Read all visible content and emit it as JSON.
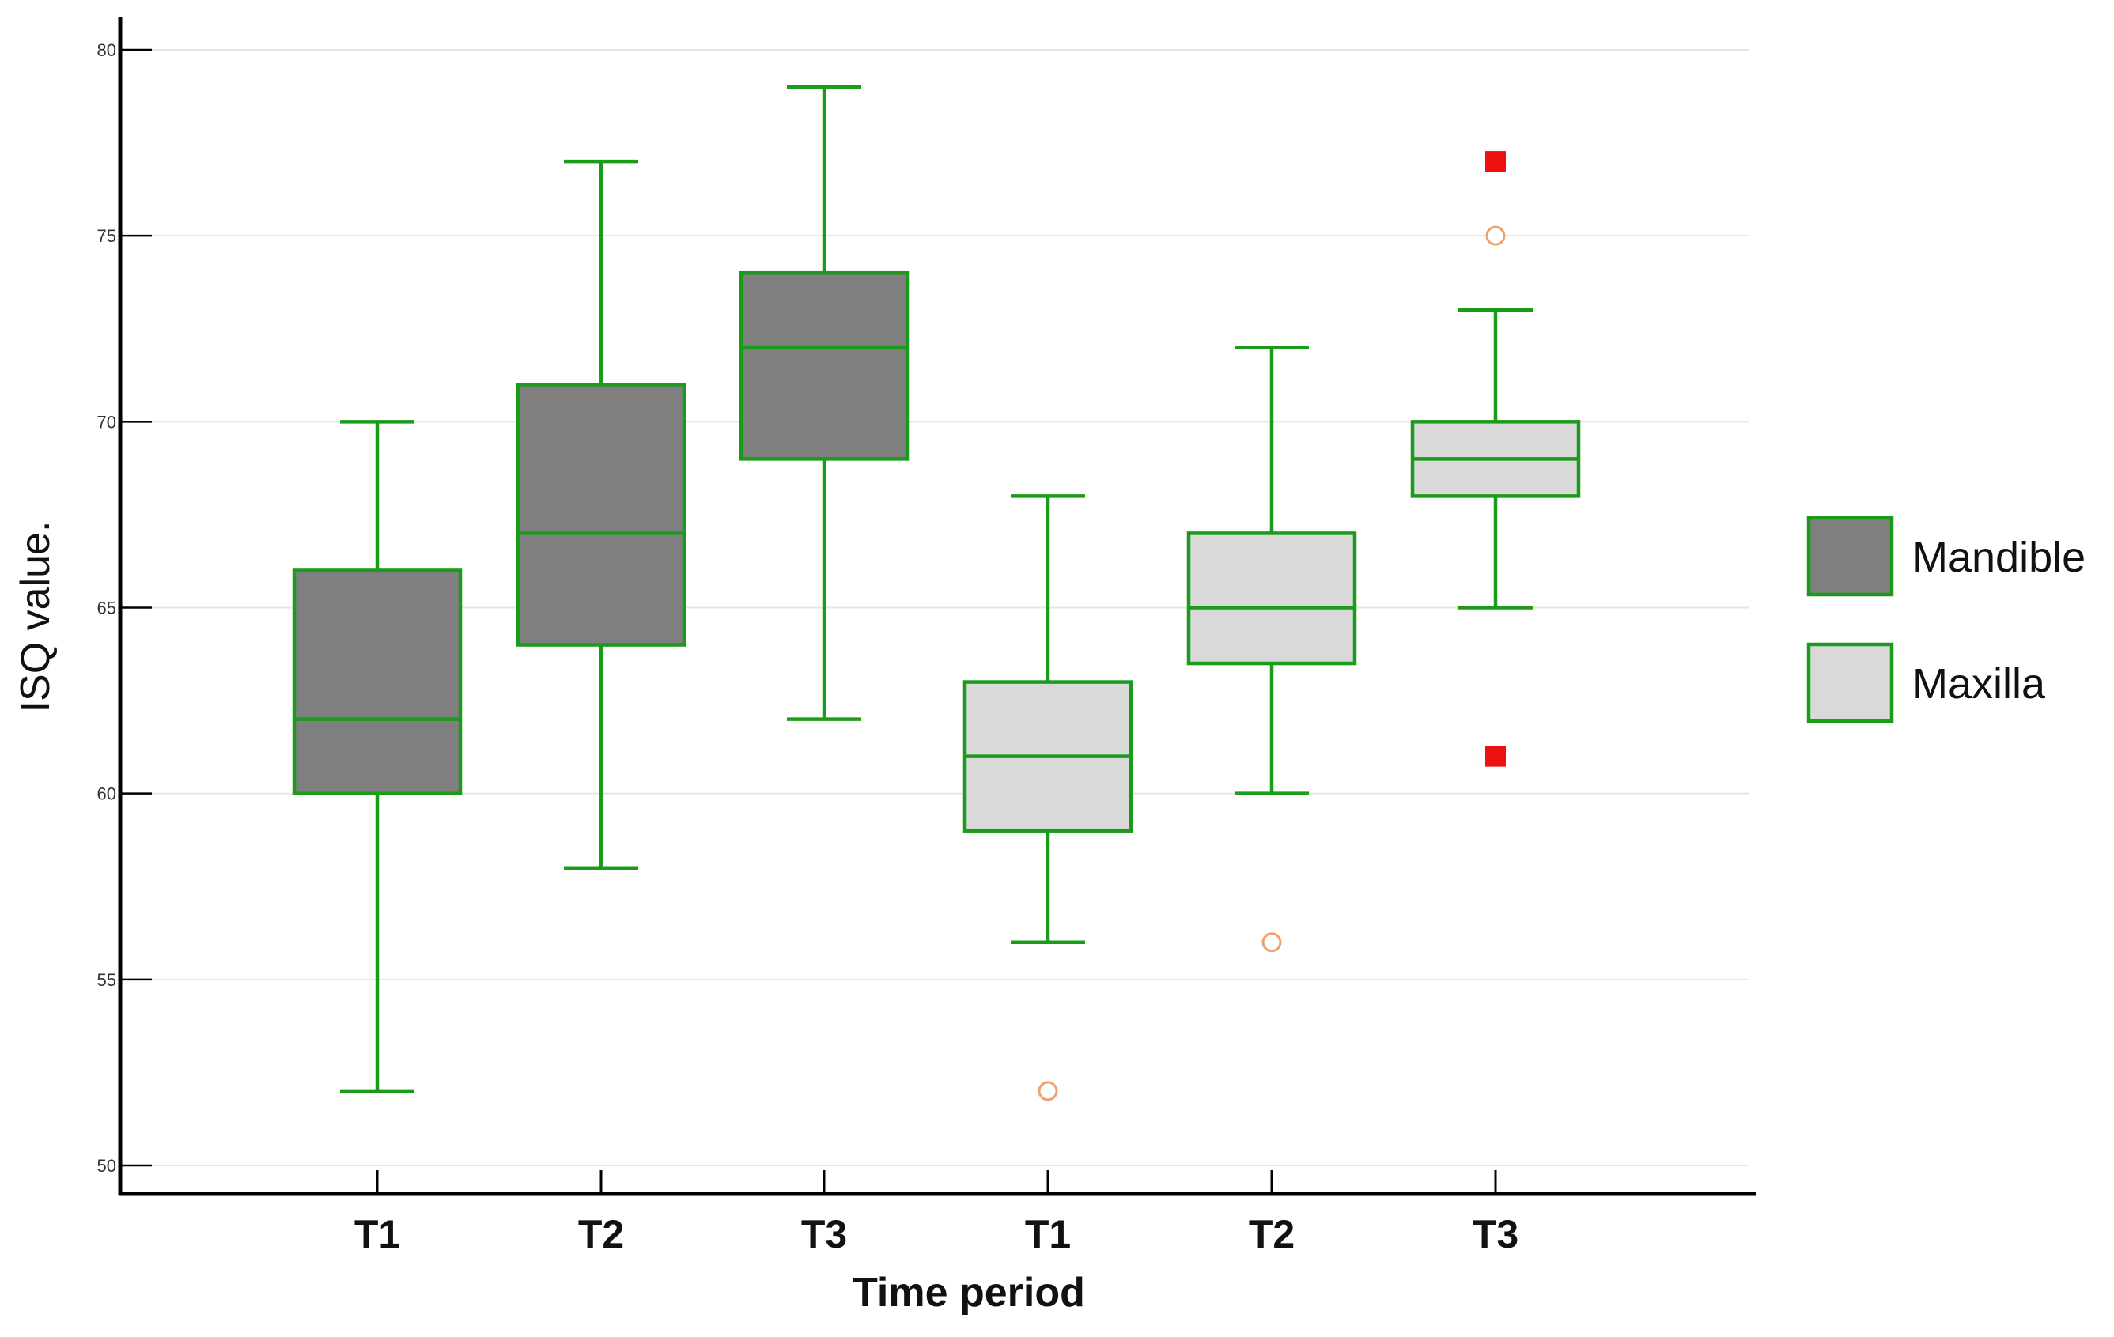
{
  "chart_data": {
    "type": "box",
    "title": "",
    "xlabel": "Time period",
    "ylabel": "ISQ value.",
    "ylim": [
      50,
      80
    ],
    "yticks": [
      50,
      55,
      60,
      65,
      70,
      75,
      80
    ],
    "grid": true,
    "legend_position": "right",
    "colors": {
      "box_stroke": "#1a9c1a",
      "mandible_fill": "#7f7f7f",
      "maxilla_fill": "#d9d9d9",
      "outlier_circle": "#f0a070",
      "outlier_square": "#ee1111",
      "gridline": "#e6e6e6",
      "axis": "#000000"
    },
    "legend": [
      {
        "label": "Mandible",
        "series": "mandible"
      },
      {
        "label": "Maxilla",
        "series": "maxilla"
      }
    ],
    "boxes": [
      {
        "category": "T1",
        "series": "mandible",
        "min": 52,
        "q1": 60,
        "median": 62,
        "q3": 66,
        "max": 70,
        "outliers": []
      },
      {
        "category": "T2",
        "series": "mandible",
        "min": 58,
        "q1": 64,
        "median": 67,
        "q3": 71,
        "max": 77,
        "outliers": []
      },
      {
        "category": "T3",
        "series": "mandible",
        "min": 62,
        "q1": 69,
        "median": 72,
        "q3": 74,
        "max": 79,
        "outliers": []
      },
      {
        "category": "T1",
        "series": "maxilla",
        "min": 56,
        "q1": 59,
        "median": 61,
        "q3": 63,
        "max": 68,
        "outliers": [
          {
            "value": 52,
            "kind": "circle"
          }
        ]
      },
      {
        "category": "T2",
        "series": "maxilla",
        "min": 60,
        "q1": 63.5,
        "median": 65,
        "q3": 67,
        "max": 72,
        "outliers": [
          {
            "value": 56,
            "kind": "circle"
          }
        ]
      },
      {
        "category": "T3",
        "series": "maxilla",
        "min": 65,
        "q1": 68,
        "median": 69,
        "q3": 70,
        "max": 73,
        "outliers": [
          {
            "value": 75,
            "kind": "circle"
          },
          {
            "value": 77,
            "kind": "square"
          },
          {
            "value": 61,
            "kind": "square"
          }
        ]
      }
    ]
  }
}
